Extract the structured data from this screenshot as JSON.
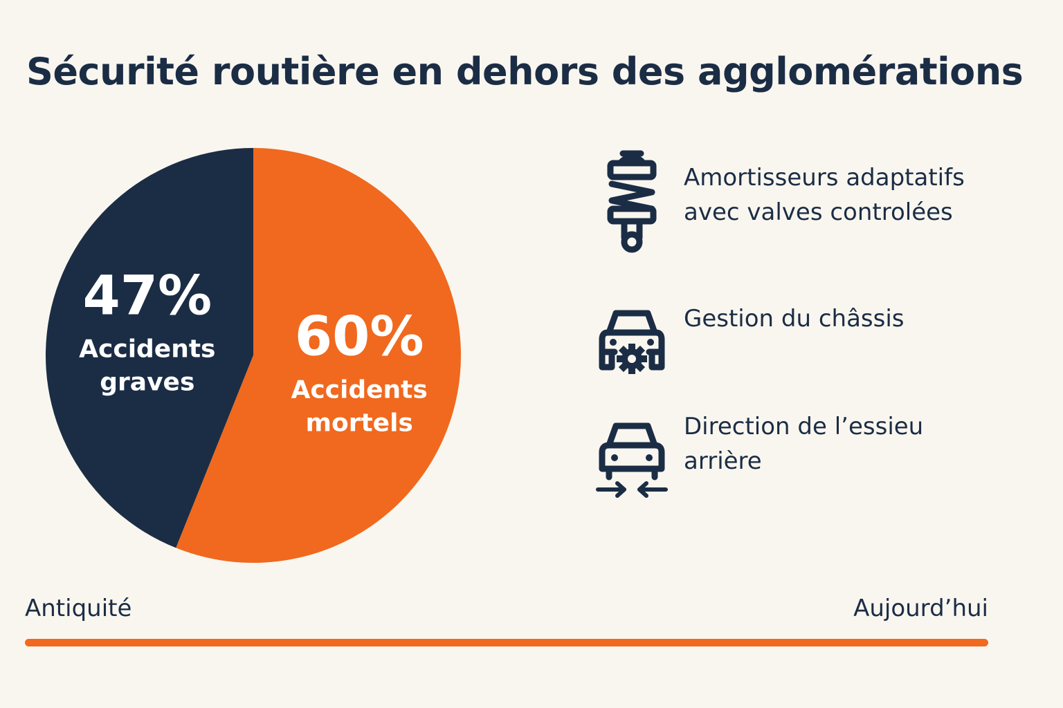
{
  "title": "Sécurité routière en dehors des agglomérations",
  "colors": {
    "navy": "#1b2d45",
    "orange": "#f0691e",
    "background": "#f9f6ef",
    "white": "#ffffff"
  },
  "chart_data": {
    "type": "pie",
    "slices": [
      {
        "value_label": "47%",
        "label_lines": [
          "Accidents",
          "graves"
        ],
        "value": 47,
        "color": "#1b2d45"
      },
      {
        "value_label": "60%",
        "label_lines": [
          "Accidents",
          "mortels"
        ],
        "value": 60,
        "color": "#f0691e"
      }
    ]
  },
  "features": [
    {
      "icon": "shock-absorber-icon",
      "label": "Amortisseurs adaptatifs\navec valves controlées"
    },
    {
      "icon": "car-gear-icon",
      "label": "Gestion du châssis"
    },
    {
      "icon": "car-axle-arrows-icon",
      "label": "Direction de l’essieu\narrière"
    }
  ],
  "timeline": {
    "start": "Antiquité",
    "end": "Aujourd’hui"
  }
}
